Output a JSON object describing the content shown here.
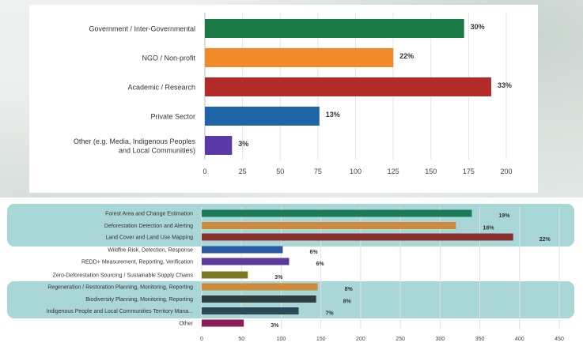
{
  "chart_data": [
    {
      "type": "bar",
      "orientation": "horizontal",
      "categories": [
        "Government / Inter-Governmental",
        "NGO / Non-profit",
        "Academic / Research",
        "Private Sector",
        "Other (e.g. Media, Indigenous Peoples and Local Communities)"
      ],
      "values": [
        172,
        125,
        190,
        76,
        18
      ],
      "data_labels": [
        "30%",
        "22%",
        "33%",
        "13%",
        "3%"
      ],
      "colors": [
        "#1a7a45",
        "#f28a2a",
        "#b22a2a",
        "#1f64a8",
        "#5b3aa8"
      ],
      "xlim": [
        0,
        200
      ],
      "xticks": [
        "0",
        "25",
        "50",
        "75",
        "100",
        "125",
        "150",
        "175",
        "200"
      ],
      "grid": true
    },
    {
      "type": "bar",
      "orientation": "horizontal",
      "categories": [
        "Forest Area and Change Estimation",
        "Deforestation Detection and Alerting",
        "Land Cover and Land Use Mapping",
        "Wildfire Risk, Detection, Response",
        "REDD+ Measurement, Reporting, Verification",
        "Zero-Deforestation Sourcing / Sustainable Supply Chains",
        "Regeneration / Restoration Planning, Monitoring, Reporting",
        "Biodiversity Planning, Monitoring, Reporting",
        "Indigenous People and Local Communities Territory Mana...",
        "Other"
      ],
      "values": [
        340,
        320,
        392,
        102,
        110,
        58,
        146,
        144,
        122,
        53
      ],
      "data_labels": [
        "19%",
        "18%",
        "22%",
        "6%",
        "6%",
        "3%",
        "8%",
        "8%",
        "7%",
        "3%"
      ],
      "colors": [
        "#1a7a55",
        "#cc8a3e",
        "#8a2e2e",
        "#2a5aa0",
        "#5a3a9a",
        "#7a7a22",
        "#d08a3a",
        "#2e3e3e",
        "#2a4a5a",
        "#8a1e5a"
      ],
      "highlight_groups": [
        [
          0,
          2
        ],
        [
          6,
          8
        ]
      ],
      "highlight_color": "#a9d6d6",
      "xlim": [
        0,
        450
      ],
      "xticks": [
        "0",
        "50",
        "100",
        "150",
        "200",
        "250",
        "300",
        "350",
        "400",
        "450"
      ],
      "grid": true
    }
  ]
}
